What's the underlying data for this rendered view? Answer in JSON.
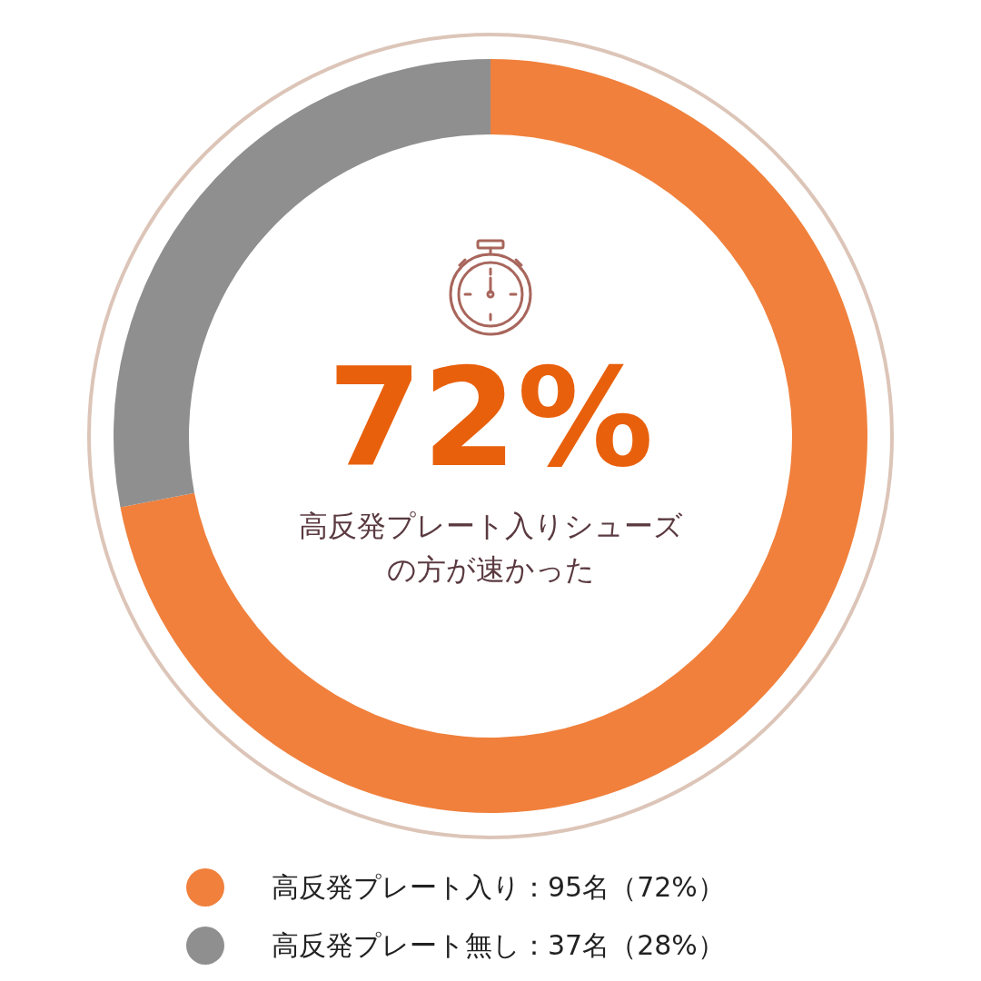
{
  "chart_data": {
    "type": "donut",
    "categories": [
      "高反発プレート入り：95名（72%）",
      "高反発プレート無し：37名（28%）"
    ],
    "values": [
      95,
      37
    ],
    "colors": [
      "#f0803c",
      "#8f8f8f"
    ],
    "legend": "bottom",
    "annotations": [
      "72%",
      "高反発プレート入りシューズの方が速かった"
    ]
  }
}
